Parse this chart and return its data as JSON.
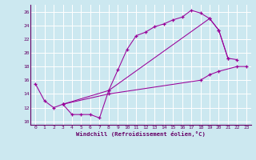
{
  "xlabel": "Windchill (Refroidissement éolien,°C)",
  "ylabel": "",
  "xlim": [
    -0.5,
    23.5
  ],
  "ylim": [
    9.5,
    27
  ],
  "yticks": [
    10,
    12,
    14,
    16,
    18,
    20,
    22,
    24,
    26
  ],
  "xticks": [
    0,
    1,
    2,
    3,
    4,
    5,
    6,
    7,
    8,
    9,
    10,
    11,
    12,
    13,
    14,
    15,
    16,
    17,
    18,
    19,
    20,
    21,
    22,
    23
  ],
  "bg_color": "#cce8f0",
  "line_color": "#990099",
  "grid_color": "#ffffff",
  "line1_x": [
    0,
    1,
    2,
    3,
    4,
    5,
    6,
    7,
    8,
    9,
    10,
    11,
    12,
    13,
    14,
    15,
    16,
    17,
    18,
    19,
    20,
    21
  ],
  "line1_y": [
    15.5,
    13.0,
    12.0,
    12.5,
    11.0,
    11.0,
    11.0,
    10.5,
    14.5,
    17.5,
    20.5,
    22.5,
    23.0,
    23.8,
    24.2,
    24.8,
    25.2,
    26.2,
    25.8,
    25.0,
    23.3,
    19.2
  ],
  "line2_x": [
    3,
    8,
    19,
    20,
    21,
    22
  ],
  "line2_y": [
    12.5,
    14.5,
    25.0,
    23.3,
    19.2,
    19.0
  ],
  "line3_x": [
    3,
    8,
    18,
    19,
    20,
    22,
    23
  ],
  "line3_y": [
    12.5,
    14.0,
    16.0,
    16.8,
    17.3,
    18.0,
    18.0
  ]
}
